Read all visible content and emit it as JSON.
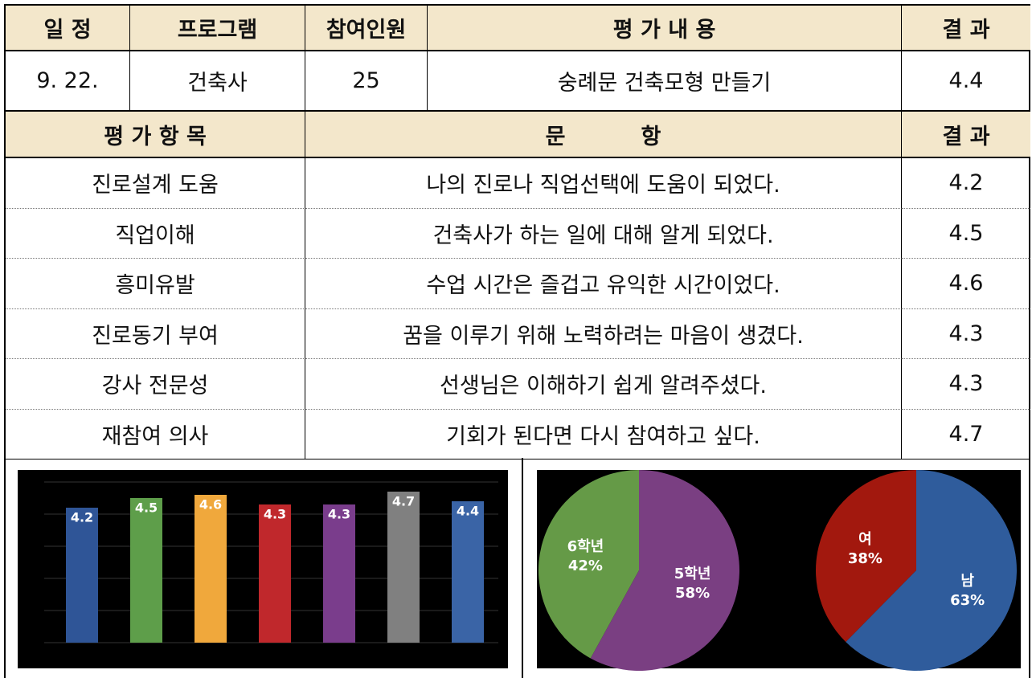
{
  "table": {
    "header1": [
      "일 정",
      "프로그램",
      "참여인원",
      "평 가 내 용",
      "결 과"
    ],
    "row1": [
      "9. 22.",
      "건축사",
      25,
      "숭례문 건축모형 만들기",
      4.4
    ],
    "header2": [
      "평 가 항 목",
      "문          항",
      "결 과"
    ],
    "rows": [
      [
        "진로설계 도움",
        "나의 진로나 직업선택에 도움이 되었다.",
        4.2
      ],
      [
        "직업이해",
        "건축사가 하는 일에 대해 알게 되었다.",
        4.5
      ],
      [
        "흥미유발",
        "수업 시간은 즐겁고 유익한 시간이었다.",
        4.6
      ],
      [
        "진로동기 부여",
        "꿈을 이루기 위해 노력하려는 마음이 생겼다.",
        4.3
      ],
      [
        "강사 전문성",
        "선생님은 이해하기 쉽게 알려주셨다.",
        4.3
      ],
      [
        "재참여 의사",
        "기회가 된다면 다시 참여하고 싶다.",
        4.7
      ]
    ]
  },
  "chart_data": [
    {
      "type": "bar",
      "values": [
        4.2,
        4.5,
        4.6,
        4.3,
        4.3,
        4.7,
        4.4
      ],
      "colors": [
        "#2f5597",
        "#5e9e4a",
        "#f0a83c",
        "#c0282c",
        "#7a3d8c",
        "#808080",
        "#3a64a6"
      ],
      "ylim": [
        0,
        5
      ],
      "yticks": [
        0,
        1,
        2,
        3,
        4,
        5
      ],
      "grid": true
    },
    {
      "type": "pie",
      "categories": [
        "6학년",
        "5학년"
      ],
      "values": [
        42,
        58
      ],
      "value_labels": [
        "42%",
        "58%"
      ],
      "colors": [
        "#659a47",
        "#7a3f82"
      ]
    },
    {
      "type": "pie",
      "categories": [
        "여",
        "남"
      ],
      "values": [
        38,
        63
      ],
      "value_labels": [
        "38%",
        "63%"
      ],
      "colors": [
        "#a2180e",
        "#2f5c9c"
      ]
    }
  ]
}
